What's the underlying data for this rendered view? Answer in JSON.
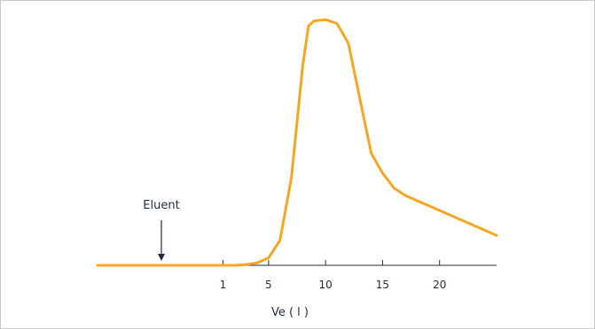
{
  "chart_data": {
    "type": "line",
    "xlabel": "Ve ( l )",
    "ylabel": "",
    "title": "",
    "xlim": [
      -10,
      25
    ],
    "ylim": [
      0,
      100
    ],
    "xticks": [
      1,
      5,
      10,
      15,
      20
    ],
    "tick_labels": [
      "1",
      "5",
      "10",
      "15",
      "20"
    ],
    "grid": false,
    "series": [
      {
        "color": "#f5a623",
        "points": [
          [
            -10,
            0
          ],
          [
            0,
            0
          ],
          [
            2,
            0
          ],
          [
            3,
            0.3
          ],
          [
            4,
            1
          ],
          [
            5,
            3
          ],
          [
            6,
            10
          ],
          [
            7,
            35
          ],
          [
            8,
            80
          ],
          [
            8.5,
            96
          ],
          [
            9,
            98
          ],
          [
            10,
            98.5
          ],
          [
            11,
            97
          ],
          [
            12,
            89
          ],
          [
            13,
            67
          ],
          [
            14,
            45
          ],
          [
            15,
            37
          ],
          [
            16,
            31
          ],
          [
            17,
            28
          ],
          [
            18,
            26
          ],
          [
            20,
            22
          ],
          [
            22,
            18
          ],
          [
            24,
            14
          ],
          [
            25,
            12
          ]
        ]
      }
    ],
    "annotations": [
      {
        "text": "Eluent",
        "x": 0,
        "arrow": true
      }
    ]
  }
}
